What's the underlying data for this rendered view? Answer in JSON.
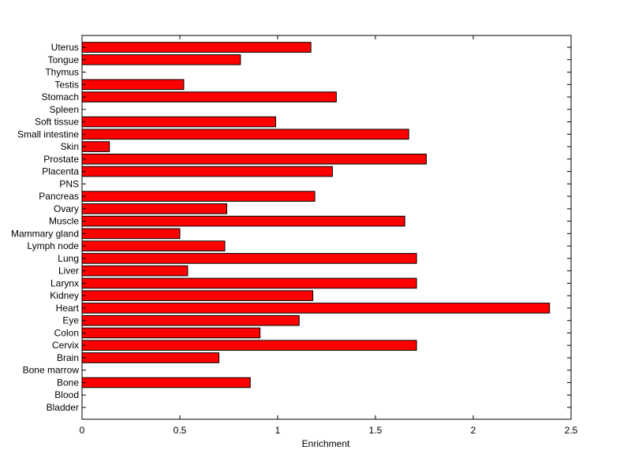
{
  "chart_data": {
    "type": "bar",
    "orientation": "horizontal",
    "categories": [
      "Bladder",
      "Blood",
      "Bone",
      "Bone marrow",
      "Brain",
      "Cervix",
      "Colon",
      "Eye",
      "Heart",
      "Kidney",
      "Larynx",
      "Liver",
      "Lung",
      "Lymph node",
      "Mammary gland",
      "Muscle",
      "Ovary",
      "Pancreas",
      "PNS",
      "Placenta",
      "Prostate",
      "Skin",
      "Small intestine",
      "Soft tissue",
      "Spleen",
      "Stomach",
      "Testis",
      "Thymus",
      "Tongue",
      "Uterus"
    ],
    "values": [
      0,
      0,
      0.86,
      0,
      0.7,
      1.71,
      0.91,
      1.11,
      2.39,
      1.18,
      1.71,
      0.54,
      1.71,
      0.73,
      0.5,
      1.65,
      0.74,
      1.19,
      0,
      1.28,
      1.76,
      0.14,
      1.67,
      0.99,
      0,
      1.3,
      0.52,
      0,
      0.81,
      1.17
    ],
    "xlabel": "Enrichment",
    "ylabel": "",
    "title": "",
    "xlim": [
      0,
      2.5
    ],
    "xticks": [
      "0",
      "0.5",
      "1",
      "1.5",
      "2",
      "2.5"
    ],
    "grid": false,
    "colors": {
      "bar": "#ff0000",
      "edge": "#000000",
      "axis": "#000000",
      "background": "#ffffff"
    }
  }
}
